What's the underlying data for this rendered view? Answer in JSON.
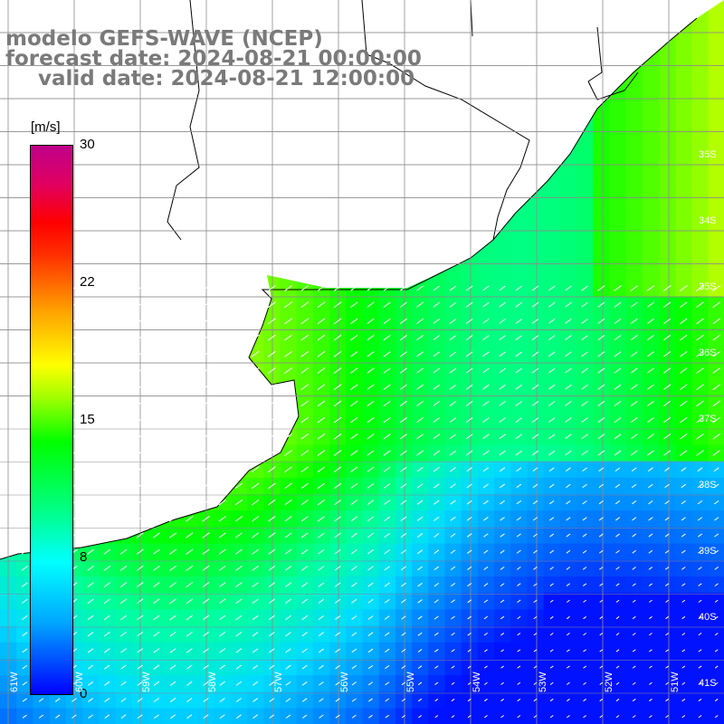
{
  "header": {
    "line1": "modelo GEFS-WAVE (NCEP)",
    "line2": "forecast date: 2024-08-21 00:00:00",
    "line3": "valid date: 2024-08-21 12:00:00"
  },
  "colorbar": {
    "units": "[m/s]",
    "ticks": [
      "30",
      "22",
      "15",
      "8",
      "0"
    ],
    "tick_values": [
      30,
      22,
      15,
      8,
      0
    ],
    "colors": [
      "#0000ff",
      "#00a6ff",
      "#00ffff",
      "#00ff80",
      "#00ff00",
      "#a0ff00",
      "#ffff00",
      "#ffa000",
      "#ff0000",
      "#c0008a"
    ]
  },
  "map": {
    "lat_labels": [
      "35S",
      "34S",
      "35S",
      "36S",
      "37S",
      "38S",
      "39S",
      "40S",
      "41S"
    ],
    "lon_labels": [
      "61W",
      "60W",
      "59W",
      "58W",
      "57W",
      "56W",
      "55W",
      "54W",
      "53W",
      "52W",
      "51W"
    ],
    "land_color": "#ffffff",
    "grid_color": "#8c8c8c",
    "arrow_color": "#ffffff"
  }
}
